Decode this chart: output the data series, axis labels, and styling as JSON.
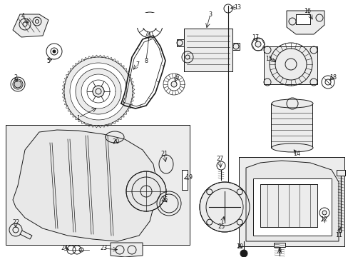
{
  "bg_color": "#ffffff",
  "line_color": "#1a1a1a",
  "fig_width": 4.89,
  "fig_height": 3.6,
  "dpi": 100,
  "gray_fill": "#d8d8d8",
  "light_gray": "#ececec",
  "box_fill": "#e8e8e8"
}
